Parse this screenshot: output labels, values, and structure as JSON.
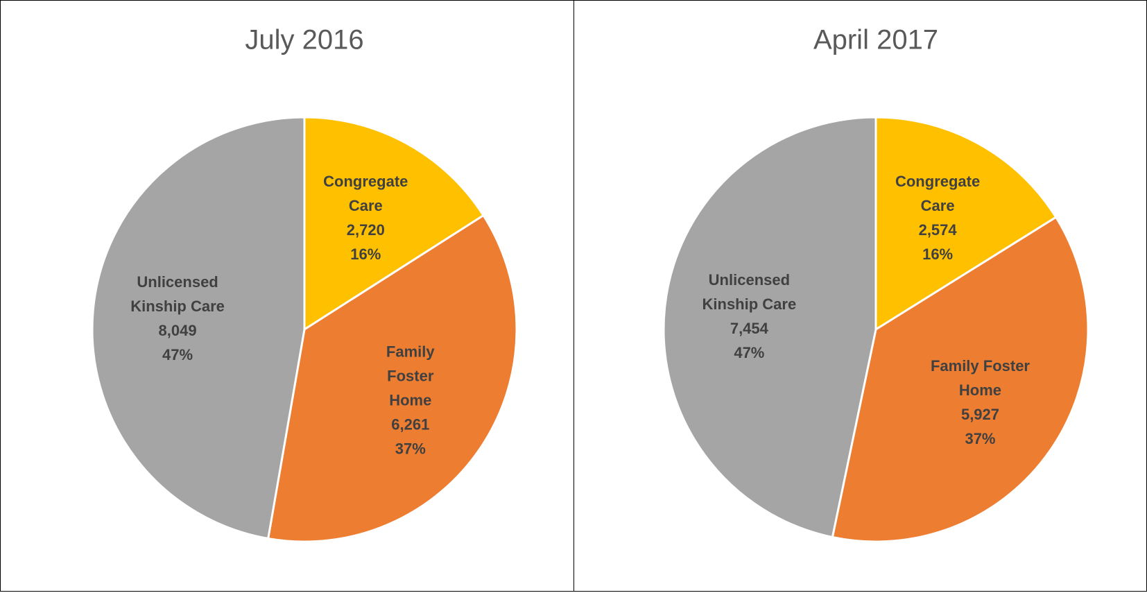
{
  "chart_data": [
    {
      "type": "pie",
      "title": "July 2016",
      "categories": [
        "Congregate Care",
        "Family Foster Home",
        "Unlicensed Kinship Care"
      ],
      "values": [
        2720,
        6261,
        8049
      ],
      "value_labels": [
        "2,720",
        "6,261",
        "8,049"
      ],
      "percentages": [
        16,
        37,
        47
      ],
      "percentage_labels": [
        "16%",
        "37%",
        "47%"
      ],
      "colors": [
        "#FFC000",
        "#ED7D31",
        "#A5A5A5"
      ]
    },
    {
      "type": "pie",
      "title": "April 2017",
      "categories": [
        "Congregate Care",
        "Family Foster Home",
        "Unlicensed Kinship Care"
      ],
      "values": [
        2574,
        5927,
        7454
      ],
      "value_labels": [
        "2,574",
        "5,927",
        "7,454"
      ],
      "percentages": [
        16,
        37,
        47
      ],
      "percentage_labels": [
        "16%",
        "37%",
        "47%"
      ],
      "colors": [
        "#FFC000",
        "#ED7D31",
        "#A5A5A5"
      ]
    }
  ]
}
